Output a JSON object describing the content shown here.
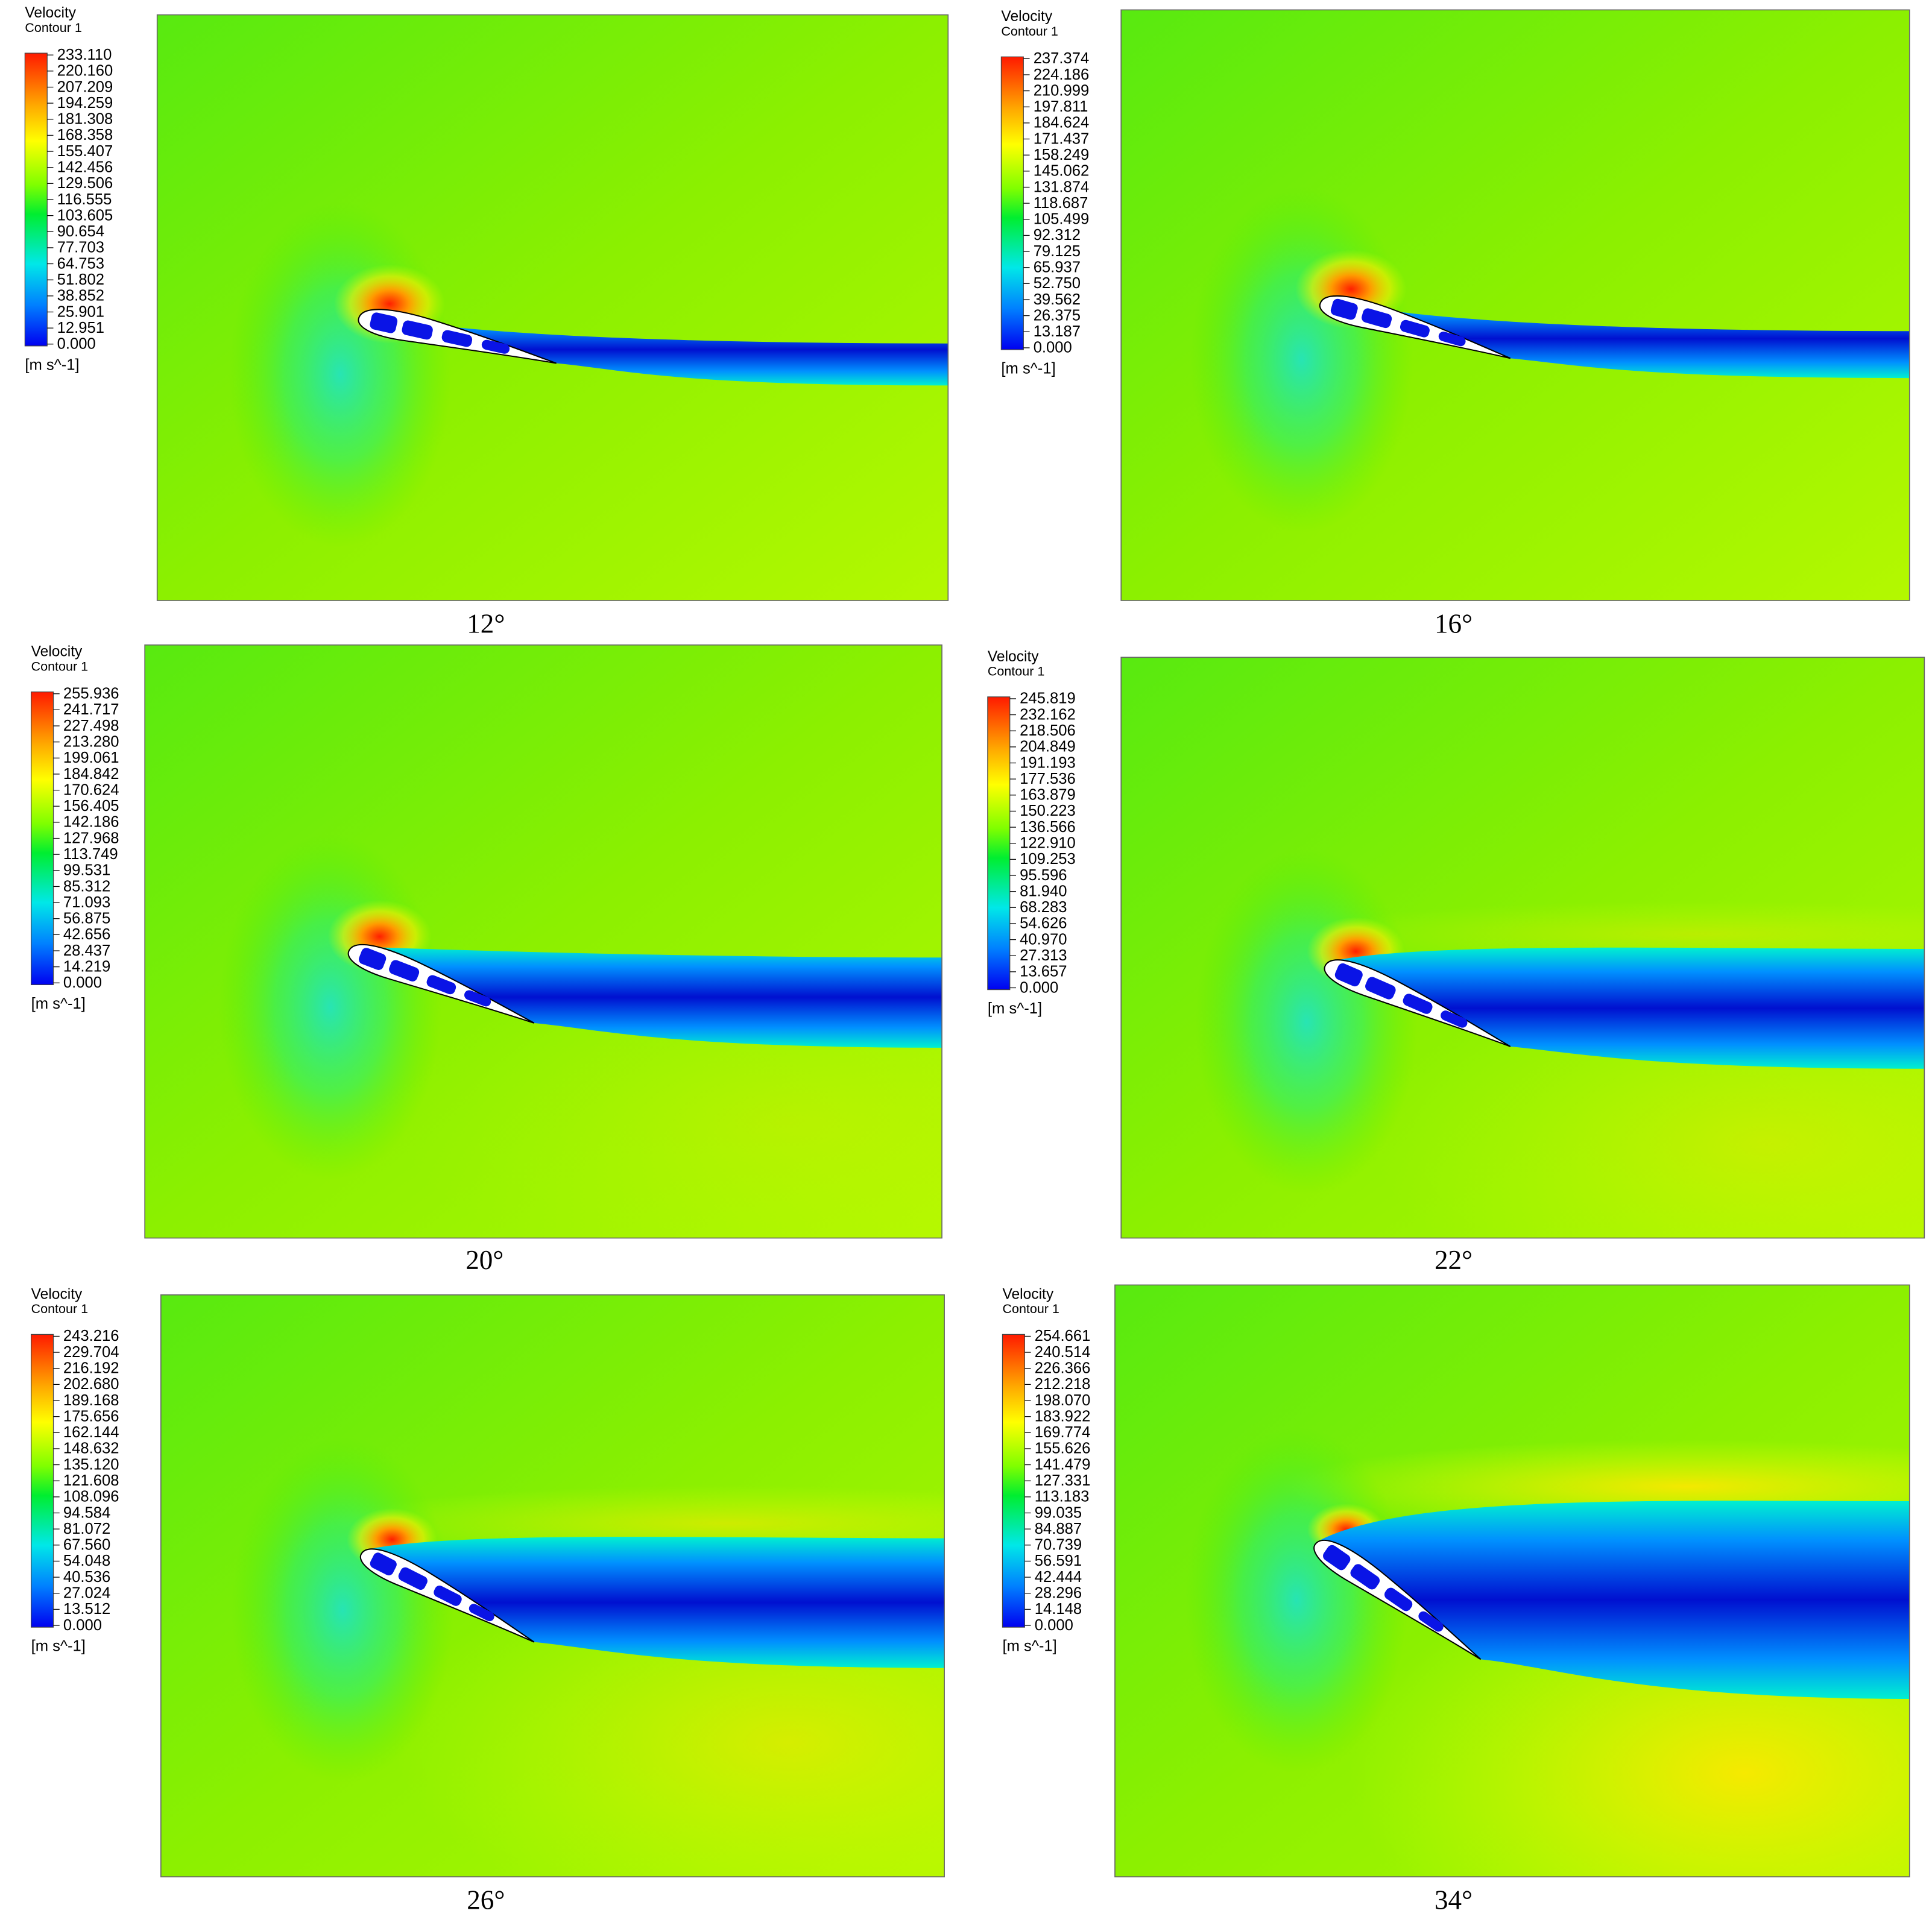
{
  "panels": [
    {
      "title": "Velocity",
      "subtitle": "Contour 1",
      "unit": "[m s^-1]",
      "caption": "12°",
      "legend": [
        "233.110",
        "220.160",
        "207.209",
        "194.259",
        "181.308",
        "168.358",
        "155.407",
        "142.456",
        "129.506",
        "116.555",
        "103.605",
        "90.654",
        "77.703",
        "64.753",
        "51.802",
        "38.852",
        "25.901",
        "12.951",
        "0.000"
      ]
    },
    {
      "title": "Velocity",
      "subtitle": "Contour 1",
      "unit": "[m s^-1]",
      "caption": "16°",
      "legend": [
        "237.374",
        "224.186",
        "210.999",
        "197.811",
        "184.624",
        "171.437",
        "158.249",
        "145.062",
        "131.874",
        "118.687",
        "105.499",
        "92.312",
        "79.125",
        "65.937",
        "52.750",
        "39.562",
        "26.375",
        "13.187",
        "0.000"
      ]
    },
    {
      "title": "Velocity",
      "subtitle": "Contour 1",
      "unit": "[m s^-1]",
      "caption": "20°",
      "legend": [
        "255.936",
        "241.717",
        "227.498",
        "213.280",
        "199.061",
        "184.842",
        "170.624",
        "156.405",
        "142.186",
        "127.968",
        "113.749",
        "99.531",
        "85.312",
        "71.093",
        "56.875",
        "42.656",
        "28.437",
        "14.219",
        "0.000"
      ]
    },
    {
      "title": "Velocity",
      "subtitle": "Contour 1",
      "unit": "[m s^-1]",
      "caption": "22°",
      "legend": [
        "245.819",
        "232.162",
        "218.506",
        "204.849",
        "191.193",
        "177.536",
        "163.879",
        "150.223",
        "136.566",
        "122.910",
        "109.253",
        "95.596",
        "81.940",
        "68.283",
        "54.626",
        "40.970",
        "27.313",
        "13.657",
        "0.000"
      ]
    },
    {
      "title": "Velocity",
      "subtitle": "Contour 1",
      "unit": "[m s^-1]",
      "caption": "26°",
      "legend": [
        "243.216",
        "229.704",
        "216.192",
        "202.680",
        "189.168",
        "175.656",
        "162.144",
        "148.632",
        "135.120",
        "121.608",
        "108.096",
        "94.584",
        "81.072",
        "67.560",
        "54.048",
        "40.536",
        "27.024",
        "13.512",
        "0.000"
      ]
    },
    {
      "title": "Velocity",
      "subtitle": "Contour 1",
      "unit": "[m s^-1]",
      "caption": "34°",
      "legend": [
        "254.661",
        "240.514",
        "226.366",
        "212.218",
        "198.070",
        "183.922",
        "169.774",
        "155.626",
        "141.479",
        "127.331",
        "113.183",
        "99.035",
        "84.887",
        "70.739",
        "56.591",
        "42.444",
        "28.296",
        "14.148",
        "0.000"
      ]
    }
  ]
}
